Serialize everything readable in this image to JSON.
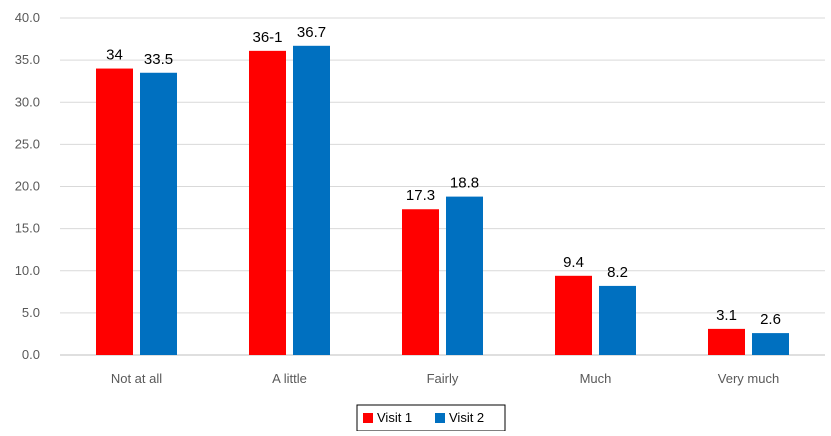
{
  "chart_data": {
    "type": "bar",
    "title": "",
    "xlabel": "",
    "ylabel": "",
    "categories": [
      "Not at all",
      "A little",
      "Fairly",
      "Much",
      "Very much"
    ],
    "series": [
      {
        "name": "Visit 1",
        "color": "#ff0000",
        "values": [
          34.0,
          36.1,
          17.3,
          9.4,
          3.1
        ],
        "labels": [
          "34",
          "36-1",
          "17.3",
          "9.4",
          "3.1"
        ]
      },
      {
        "name": "Visit 2",
        "color": "#0070c0",
        "values": [
          33.5,
          36.7,
          18.8,
          8.2,
          2.6
        ],
        "labels": [
          "33.5",
          "36.7",
          "18.8",
          "8.2",
          "2.6"
        ]
      }
    ],
    "ylim": [
      0,
      40
    ],
    "yticks": [
      "0.0",
      "5.0",
      "10.0",
      "15.0",
      "20.0",
      "25.0",
      "30.0",
      "35.0",
      "40.0"
    ],
    "grid": true,
    "legend": "bottom-center"
  }
}
